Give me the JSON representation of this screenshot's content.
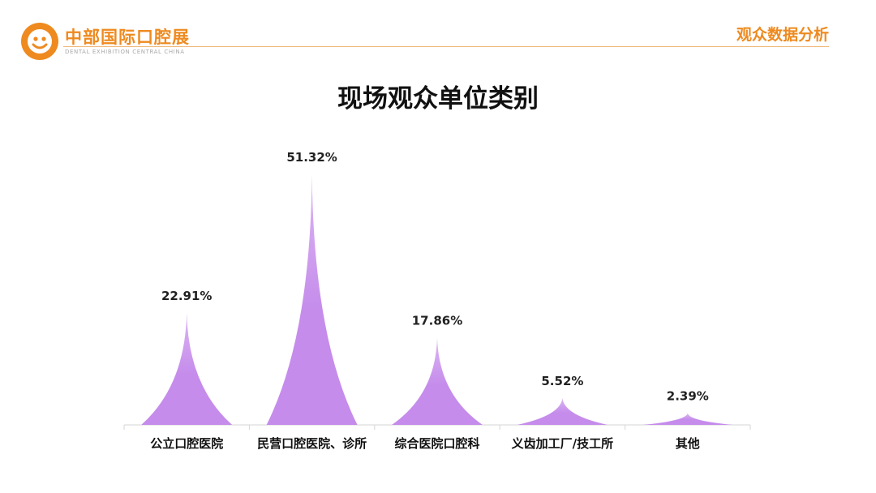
{
  "header": {
    "brand_name": "中部国际口腔展",
    "brand_sub": "DENTAL EXHIBITION CENTRAL CHINA",
    "section_title": "观众数据分析"
  },
  "colors": {
    "accent": "#ee8a1f",
    "bar": "#c58ceb",
    "bar_light": "#dcb6f3"
  },
  "icons": {
    "logo": "smile-face-logo-icon"
  },
  "chart_data": {
    "type": "bar",
    "title": "现场观众单位类别",
    "categories": [
      "公立口腔医院",
      "民营口腔医院、诊所",
      "综合医院口腔科",
      "义齿加工厂/技工所",
      "其他"
    ],
    "values": [
      22.91,
      51.32,
      17.86,
      5.52,
      2.39
    ],
    "value_labels": [
      "22.91%",
      "51.32%",
      "17.86%",
      "5.52%",
      "2.39%"
    ],
    "xlabel": "",
    "ylabel": "",
    "ylim": [
      0,
      60
    ],
    "grid": false,
    "legend": "none"
  }
}
